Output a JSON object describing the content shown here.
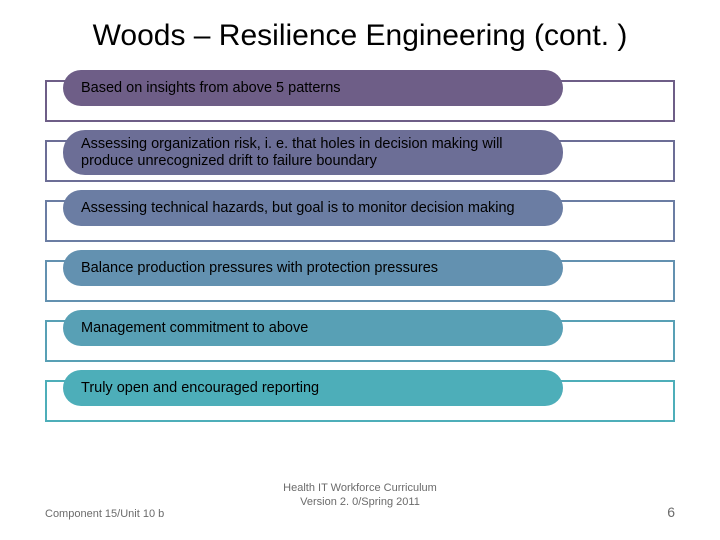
{
  "title": "Woods – Resilience Engineering (cont. )",
  "bars": [
    {
      "text": "Based on insights from above 5 patterns",
      "pill_color": "#6e5e87",
      "frame_color": "#6e5e87"
    },
    {
      "text": "Assessing organization risk, i. e. that holes in decision making will produce unrecognized drift to failure boundary",
      "pill_color": "#6c6e96",
      "frame_color": "#6c6e96"
    },
    {
      "text": "Assessing technical hazards, but goal is to monitor decision making",
      "pill_color": "#6b7da3",
      "frame_color": "#6b7da3"
    },
    {
      "text": "Balance production pressures with protection pressures",
      "pill_color": "#6391b0",
      "frame_color": "#6391b0"
    },
    {
      "text": "Management commitment to above",
      "pill_color": "#58a0b5",
      "frame_color": "#58a0b5"
    },
    {
      "text": "Truly open and encouraged reporting",
      "pill_color": "#4daeb9",
      "frame_color": "#4daeb9"
    }
  ],
  "footer": {
    "left": "Component 15/Unit 10 b",
    "center_line1": "Health IT Workforce Curriculum",
    "center_line2": "Version 2. 0/Spring 2011",
    "page": "6"
  },
  "layout": {
    "bar_wrap_height": 52,
    "pill_width": 500,
    "title_fontsize": 30,
    "bar_fontsize": 14.5,
    "footer_fontsize": 11
  }
}
